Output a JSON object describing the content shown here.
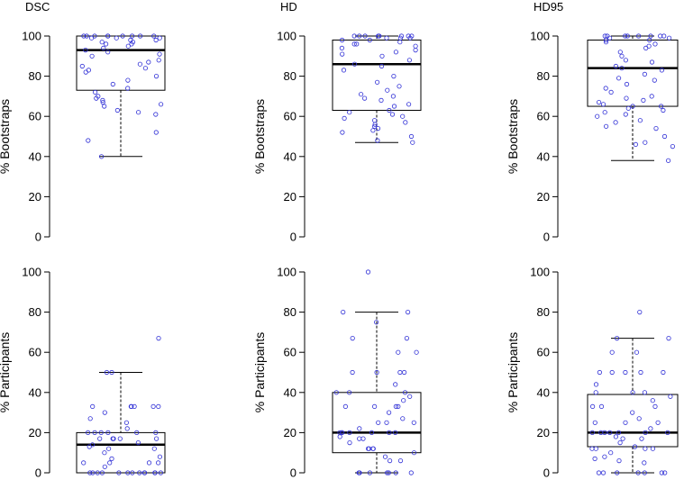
{
  "chart_data": [
    {
      "type": "boxplot",
      "title": "DSC",
      "ylabel": "% Bootstraps",
      "ylim": [
        0,
        100
      ],
      "yticks": [
        "0",
        "20",
        "40",
        "60",
        "80",
        "100"
      ],
      "box": {
        "whisker_low": 40,
        "q1": 73,
        "median": 93,
        "q3": 100,
        "whisker_high": 100
      },
      "points": [
        100,
        100,
        100,
        100,
        100,
        100,
        100,
        100,
        100,
        99,
        99,
        99,
        98,
        98,
        97,
        97,
        96,
        96,
        95,
        94,
        93,
        92,
        91,
        90,
        88,
        87,
        86,
        85,
        84,
        83,
        82,
        80,
        78,
        76,
        74,
        72,
        70,
        69,
        68,
        67,
        66,
        65,
        63,
        62,
        61,
        52,
        48,
        40
      ]
    },
    {
      "type": "boxplot",
      "title": "HD",
      "ylabel": "% Bootstraps",
      "ylim": [
        0,
        100
      ],
      "yticks": [
        "0",
        "20",
        "40",
        "60",
        "80",
        "100"
      ],
      "box": {
        "whisker_low": 47,
        "q1": 63,
        "median": 86,
        "q3": 98,
        "whisker_high": 100
      },
      "points": [
        100,
        100,
        100,
        100,
        100,
        100,
        100,
        100,
        99,
        99,
        99,
        98,
        98,
        97,
        96,
        96,
        95,
        94,
        93,
        92,
        91,
        90,
        88,
        86,
        85,
        83,
        80,
        77,
        75,
        73,
        71,
        70,
        69,
        68,
        66,
        65,
        63,
        62,
        61,
        60,
        59,
        58,
        57,
        56,
        55,
        54,
        53,
        52,
        50,
        48,
        47
      ]
    },
    {
      "type": "boxplot",
      "title": "HD95",
      "ylabel": "% Bootstraps",
      "ylim": [
        0,
        100
      ],
      "yticks": [
        "0",
        "20",
        "40",
        "60",
        "80",
        "100"
      ],
      "box": {
        "whisker_low": 38,
        "q1": 65,
        "median": 84,
        "q3": 98,
        "whisker_high": 100
      },
      "points": [
        100,
        100,
        100,
        100,
        100,
        100,
        100,
        100,
        99,
        99,
        98,
        98,
        97,
        96,
        95,
        94,
        92,
        90,
        88,
        87,
        85,
        84,
        83,
        81,
        79,
        78,
        76,
        74,
        72,
        70,
        69,
        68,
        67,
        66,
        65,
        65,
        64,
        63,
        62,
        61,
        60,
        58,
        57,
        55,
        54,
        50,
        47,
        46,
        45,
        38
      ]
    },
    {
      "type": "boxplot",
      "title": "",
      "ylabel": "% Participants",
      "ylim": [
        0,
        100
      ],
      "yticks": [
        "0",
        "20",
        "40",
        "60",
        "80",
        "100"
      ],
      "box": {
        "whisker_low": 0,
        "q1": 0,
        "median": 14,
        "q3": 20,
        "whisker_high": 50
      },
      "points": [
        67,
        50,
        50,
        33,
        33,
        33,
        33,
        33,
        33,
        30,
        27,
        25,
        22,
        20,
        20,
        20,
        20,
        20,
        20,
        17,
        17,
        17,
        17,
        17,
        15,
        14,
        13,
        12,
        12,
        10,
        8,
        7,
        5,
        5,
        5,
        5,
        3,
        0,
        0,
        0,
        0,
        0,
        0,
        0,
        0,
        0,
        0,
        0,
        0,
        0
      ]
    },
    {
      "type": "boxplot",
      "title": "",
      "ylabel": "% Participants",
      "ylim": [
        0,
        100
      ],
      "yticks": [
        "0",
        "20",
        "40",
        "60",
        "80",
        "100"
      ],
      "box": {
        "whisker_low": 0,
        "q1": 10,
        "median": 20,
        "q3": 40,
        "whisker_high": 80
      },
      "points": [
        100,
        80,
        80,
        75,
        67,
        67,
        60,
        60,
        50,
        50,
        50,
        50,
        44,
        40,
        40,
        40,
        38,
        36,
        33,
        33,
        33,
        33,
        30,
        27,
        25,
        25,
        25,
        22,
        20,
        20,
        20,
        20,
        20,
        20,
        20,
        18,
        17,
        17,
        15,
        12,
        12,
        12,
        12,
        10,
        8,
        6,
        6,
        0,
        0,
        0,
        0,
        0,
        0,
        0
      ]
    },
    {
      "type": "boxplot",
      "title": "",
      "ylabel": "% Participants",
      "ylim": [
        0,
        100
      ],
      "yticks": [
        "0",
        "20",
        "40",
        "60",
        "80",
        "100"
      ],
      "box": {
        "whisker_low": 0,
        "q1": 13,
        "median": 20,
        "q3": 39,
        "whisker_high": 67
      },
      "points": [
        80,
        67,
        67,
        60,
        60,
        50,
        50,
        50,
        50,
        50,
        44,
        40,
        40,
        40,
        38,
        36,
        33,
        33,
        33,
        30,
        27,
        25,
        25,
        25,
        22,
        20,
        20,
        20,
        20,
        20,
        20,
        20,
        18,
        17,
        17,
        15,
        13,
        12,
        12,
        12,
        12,
        10,
        8,
        7,
        6,
        5,
        0,
        0,
        0,
        0,
        0,
        0,
        0
      ]
    }
  ]
}
